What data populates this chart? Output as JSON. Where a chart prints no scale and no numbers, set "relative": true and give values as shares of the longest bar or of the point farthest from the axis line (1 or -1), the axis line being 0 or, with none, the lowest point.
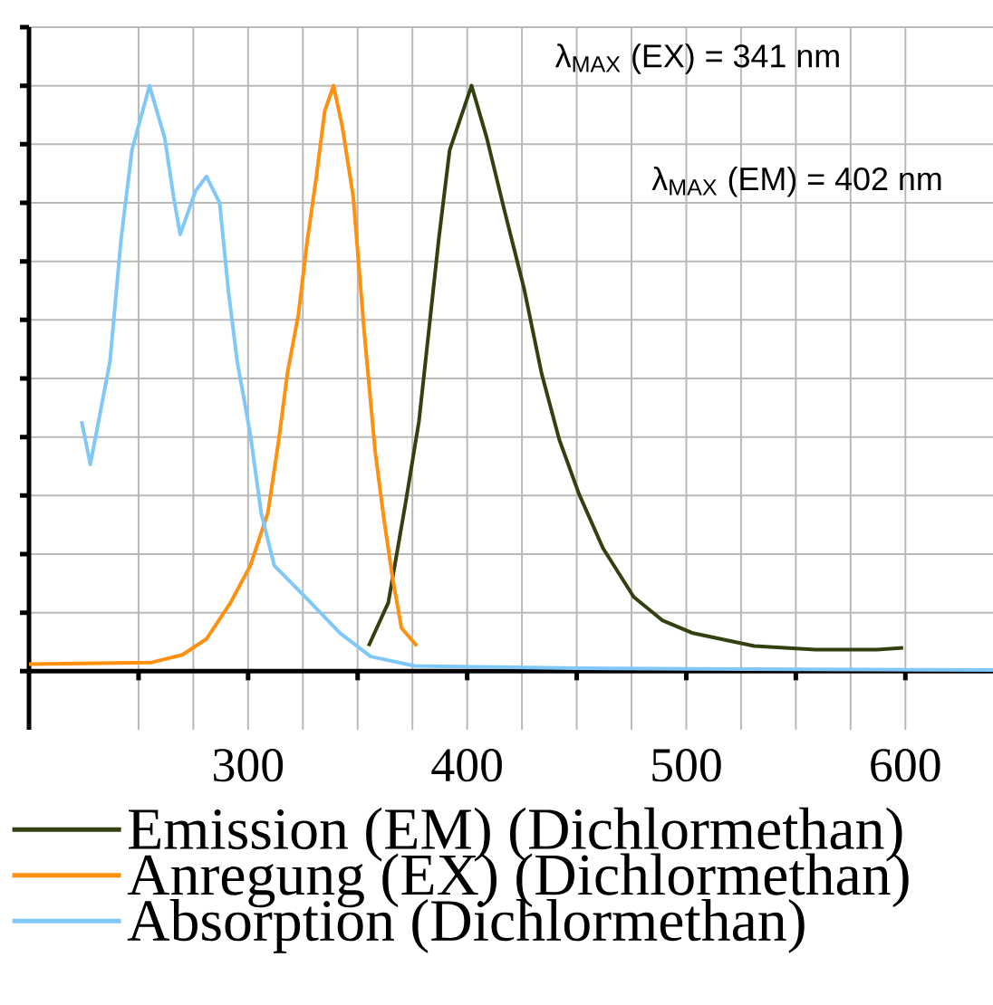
{
  "chart_data": {
    "type": "line",
    "relative": true,
    "grid": true,
    "legend": "bottom",
    "tick_labels": "x",
    "xlim": [
      200,
      640
    ],
    "xticks": [
      {
        "value": 250,
        "label": null
      },
      300,
      {
        "value": 350,
        "label": null
      },
      400,
      {
        "value": 450,
        "label": null
      },
      500,
      {
        "value": 550,
        "label": null
      },
      600
    ],
    "annotations": [
      "λ$_{MAX}$ (EX) = 341 nm",
      "λ$_{MAX}$ (EM) = 402 nm"
    ],
    "series": [
      {
        "name": "Emission (EM) (Dichlormethan)",
        "color": "#334010",
        "x": [
          355,
          364,
          372,
          378,
          381,
          387,
          392,
          402,
          409,
          417,
          426,
          434,
          442,
          451,
          462,
          476,
          489,
          503,
          531,
          559,
          587,
          599
        ],
        "values": [
          0.043,
          0.117,
          0.29,
          0.427,
          0.53,
          0.737,
          0.89,
          1.0,
          0.91,
          0.787,
          0.653,
          0.508,
          0.396,
          0.303,
          0.21,
          0.127,
          0.087,
          0.065,
          0.043,
          0.037,
          0.037,
          0.04
        ]
      },
      {
        "name": "Anregung (EX) (Dichlormethan)",
        "color": "#ff9010",
        "x": [
          200,
          256,
          270,
          281,
          292,
          301,
          309,
          314,
          318,
          323,
          327,
          331,
          335,
          339,
          343,
          348,
          353,
          358,
          362,
          366,
          370,
          377
        ],
        "values": [
          0.012,
          0.015,
          0.028,
          0.055,
          0.117,
          0.18,
          0.27,
          0.395,
          0.51,
          0.61,
          0.735,
          0.84,
          0.957,
          1.0,
          0.93,
          0.81,
          0.58,
          0.375,
          0.26,
          0.158,
          0.074,
          0.043
        ]
      },
      {
        "name": "Absorption (Dichlormethan)",
        "color": "#80c8f8",
        "x": [
          224,
          228,
          237,
          242,
          247,
          255,
          262,
          266,
          269,
          276,
          281,
          287,
          291,
          295,
          301,
          306,
          312,
          326,
          342,
          356,
          376,
          450,
          640
        ],
        "values": [
          0.427,
          0.353,
          0.53,
          0.737,
          0.89,
          1.0,
          0.91,
          0.81,
          0.746,
          0.82,
          0.845,
          0.8,
          0.65,
          0.53,
          0.405,
          0.27,
          0.18,
          0.127,
          0.065,
          0.025,
          0.009,
          0.005,
          0.002
        ]
      }
    ]
  }
}
